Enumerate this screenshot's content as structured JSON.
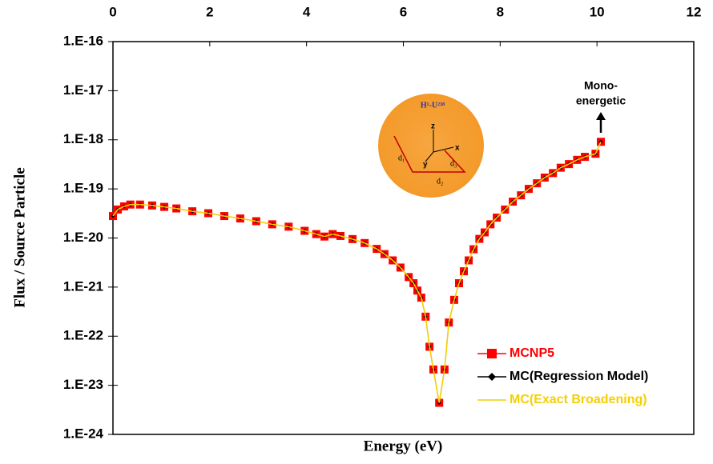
{
  "chart_data": {
    "type": "line",
    "ylabel": "Flux / Source Particle",
    "xlabel": "Energy (eV)",
    "ylog": true,
    "xlim": [
      0,
      12
    ],
    "xticks": [
      0,
      2,
      4,
      6,
      8,
      10,
      12
    ],
    "ylim": [
      1e-24,
      1e-16
    ],
    "yticks": [
      {
        "value": 1e-24,
        "label": "1.E-24"
      },
      {
        "value": 1e-23,
        "label": "1.E-23"
      },
      {
        "value": 1e-22,
        "label": "1.E-22"
      },
      {
        "value": 1e-21,
        "label": "1.E-21"
      },
      {
        "value": 1e-20,
        "label": "1.E-20"
      },
      {
        "value": 1e-19,
        "label": "1.E-19"
      },
      {
        "value": 1e-18,
        "label": "1.E-18"
      },
      {
        "value": 1e-17,
        "label": "1.E-17"
      },
      {
        "value": 1e-16,
        "label": "1.E-16"
      }
    ],
    "x": [
      0,
      0.1,
      0.23,
      0.36,
      0.56,
      0.81,
      1.06,
      1.31,
      1.64,
      1.97,
      2.3,
      2.63,
      2.96,
      3.29,
      3.63,
      3.96,
      4.2,
      4.37,
      4.54,
      4.7,
      4.95,
      5.2,
      5.45,
      5.61,
      5.78,
      5.94,
      6.11,
      6.21,
      6.29,
      6.37,
      6.46,
      6.54,
      6.62,
      6.74,
      6.85,
      6.94,
      7.05,
      7.15,
      7.25,
      7.35,
      7.45,
      7.57,
      7.68,
      7.8,
      7.93,
      8.1,
      8.26,
      8.43,
      8.59,
      8.76,
      8.92,
      9.09,
      9.25,
      9.42,
      9.59,
      9.75,
      9.97,
      10.08
    ],
    "series": [
      {
        "name": "MCNP5",
        "color": "#ff0000",
        "marker": "square",
        "values": [
          2.8e-20,
          3.8e-20,
          4.4e-20,
          4.8e-20,
          4.8e-20,
          4.6e-20,
          4.3e-20,
          4e-20,
          3.5e-20,
          3.2e-20,
          2.8e-20,
          2.5e-20,
          2.2e-20,
          1.9e-20,
          1.7e-20,
          1.4e-20,
          1.2e-20,
          1.07e-20,
          1.2e-20,
          1.1e-20,
          9.5e-21,
          7.9e-21,
          6e-21,
          4.7e-21,
          3.5e-21,
          2.5e-21,
          1.6e-21,
          1.2e-21,
          8.5e-22,
          6.1e-22,
          2.5e-22,
          6.1e-23,
          2.1e-23,
          4.4e-24,
          2.1e-23,
          1.9e-22,
          5.5e-22,
          1.2e-21,
          2.1e-21,
          3.5e-21,
          5.9e-21,
          9.6e-21,
          1.3e-20,
          1.9e-20,
          2.6e-20,
          3.8e-20,
          5.5e-20,
          7.4e-20,
          1e-19,
          1.3e-19,
          1.7e-19,
          2.1e-19,
          2.7e-19,
          3.2e-19,
          3.9e-19,
          4.5e-19,
          5.2e-19,
          9.1e-19
        ]
      },
      {
        "name": "MC(Regression Model)",
        "color": "#000000",
        "marker": "diamond",
        "values": [
          2.8e-20,
          3.8e-20,
          4.4e-20,
          4.8e-20,
          4.8e-20,
          4.6e-20,
          4.3e-20,
          4e-20,
          3.5e-20,
          3.2e-20,
          2.8e-20,
          2.5e-20,
          2.2e-20,
          1.9e-20,
          1.7e-20,
          1.4e-20,
          1.2e-20,
          1.07e-20,
          1.2e-20,
          1.1e-20,
          9.5e-21,
          7.9e-21,
          6e-21,
          4.7e-21,
          3.5e-21,
          2.5e-21,
          1.6e-21,
          1.2e-21,
          8.5e-22,
          6.1e-22,
          2.5e-22,
          6.1e-23,
          2.1e-23,
          4.4e-24,
          2.1e-23,
          1.9e-22,
          5.5e-22,
          1.2e-21,
          2.1e-21,
          3.5e-21,
          5.9e-21,
          9.6e-21,
          1.3e-20,
          1.9e-20,
          2.6e-20,
          3.8e-20,
          5.5e-20,
          7.4e-20,
          1e-19,
          1.3e-19,
          1.7e-19,
          2.1e-19,
          2.7e-19,
          3.2e-19,
          3.9e-19,
          4.5e-19,
          5.2e-19,
          9.1e-19
        ]
      },
      {
        "name": "MC(Exact Broadening)",
        "color": "#f5d000",
        "marker": "none",
        "values": [
          2.8e-20,
          3.8e-20,
          4.4e-20,
          4.8e-20,
          4.8e-20,
          4.6e-20,
          4.3e-20,
          4e-20,
          3.5e-20,
          3.2e-20,
          2.8e-20,
          2.5e-20,
          2.2e-20,
          1.9e-20,
          1.7e-20,
          1.4e-20,
          1.2e-20,
          1.07e-20,
          1.2e-20,
          1.1e-20,
          9.5e-21,
          7.9e-21,
          6e-21,
          4.7e-21,
          3.5e-21,
          2.5e-21,
          1.6e-21,
          1.2e-21,
          8.5e-22,
          6.1e-22,
          2.5e-22,
          6.1e-23,
          2.1e-23,
          4.4e-24,
          2.1e-23,
          1.9e-22,
          5.5e-22,
          1.2e-21,
          2.1e-21,
          3.5e-21,
          5.9e-21,
          9.6e-21,
          1.3e-20,
          1.9e-20,
          2.6e-20,
          3.8e-20,
          5.5e-20,
          7.4e-20,
          1e-19,
          1.3e-19,
          1.7e-19,
          2.1e-19,
          2.7e-19,
          3.2e-19,
          3.9e-19,
          4.5e-19,
          5.2e-19,
          9.1e-19
        ]
      }
    ],
    "annotation": [
      "Mono-",
      "energetic"
    ],
    "inset_labels": {
      "title": "H¹-U²³⁸",
      "z": "z",
      "x": "x",
      "y": "y",
      "d1": "d₁",
      "d2": "d₂",
      "d3": "d₃"
    }
  }
}
